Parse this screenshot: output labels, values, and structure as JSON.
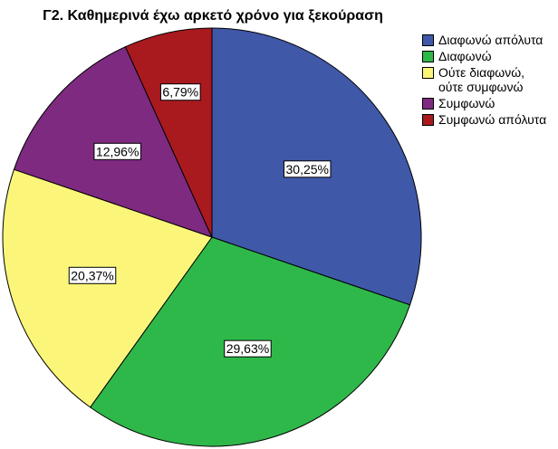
{
  "chart_data": {
    "type": "pie",
    "title": "Γ2. Καθημερινά έχω αρκετό χρόνο για ξεκούραση",
    "categories": [
      "Διαφωνώ απόλυτα",
      "Διαφωνώ",
      "Ούτε διαφωνώ,\nούτε συμφωνώ",
      "Συμφωνώ",
      "Συμφωνώ απόλυτα"
    ],
    "values": [
      30.25,
      29.63,
      20.37,
      12.96,
      6.79
    ],
    "value_labels": [
      "30,25%",
      "29,63%",
      "20,37%",
      "12,96%",
      "6,79%"
    ],
    "colors": [
      "#3f58a8",
      "#2fb84a",
      "#fbf67a",
      "#7d2a80",
      "#a91a1e"
    ],
    "legend_position": "right",
    "start": "12 o'clock, clockwise"
  }
}
